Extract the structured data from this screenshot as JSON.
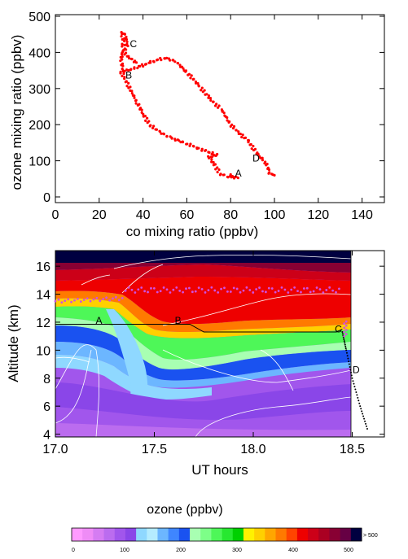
{
  "chart_data": [
    {
      "type": "scatter",
      "xlabel": "co mixing ratio (ppbv)",
      "ylabel": "ozone mixing ratio (ppbv)",
      "xlim": [
        0,
        150
      ],
      "ylim": [
        0,
        500
      ],
      "xticks": [
        "0",
        "20",
        "40",
        "60",
        "80",
        "100",
        "120",
        "140"
      ],
      "yticks": [
        "0",
        "100",
        "200",
        "300",
        "400",
        "500"
      ],
      "color": "#ff0000",
      "path_points": [
        [
          80,
          60
        ],
        [
          83,
          52
        ],
        [
          78,
          57
        ],
        [
          75,
          65
        ],
        [
          72,
          95
        ],
        [
          70,
          110
        ],
        [
          74,
          115
        ],
        [
          72,
          120
        ],
        [
          65,
          135
        ],
        [
          58,
          152
        ],
        [
          52,
          165
        ],
        [
          47,
          182
        ],
        [
          43,
          200
        ],
        [
          40,
          230
        ],
        [
          37,
          265
        ],
        [
          34,
          300
        ],
        [
          31,
          335
        ],
        [
          30,
          348
        ],
        [
          31,
          348
        ],
        [
          34,
          352
        ],
        [
          38,
          360
        ],
        [
          43,
          372
        ],
        [
          50,
          385
        ],
        [
          55,
          375
        ],
        [
          60,
          345
        ],
        [
          66,
          305
        ],
        [
          70,
          275
        ],
        [
          76,
          240
        ],
        [
          80,
          200
        ],
        [
          85,
          170
        ],
        [
          88,
          155
        ],
        [
          92,
          120
        ],
        [
          96,
          95
        ],
        [
          98,
          65
        ],
        [
          100,
          60
        ]
      ],
      "path_points_2": [
        [
          31,
          346
        ],
        [
          30,
          380
        ],
        [
          31,
          410
        ],
        [
          31,
          440
        ],
        [
          30,
          455
        ],
        [
          32,
          448
        ],
        [
          33,
          420
        ],
        [
          31,
          400
        ],
        [
          34,
          385
        ],
        [
          37,
          372
        ]
      ],
      "annotations": [
        {
          "label": "A",
          "x": 82,
          "y": 65
        },
        {
          "label": "B",
          "x": 32,
          "y": 337
        },
        {
          "label": "C",
          "x": 34,
          "y": 423
        },
        {
          "label": "D",
          "x": 90,
          "y": 107
        }
      ]
    },
    {
      "type": "heatmap",
      "xlabel": "UT hours",
      "ylabel": "Altitude (km)",
      "xlim": [
        17.0,
        18.66
      ],
      "ylim": [
        3.8,
        17.1
      ],
      "xticks": [
        "17.0",
        "17.5",
        "18.0",
        "18.5"
      ],
      "yticks": [
        "4",
        "6",
        "8",
        "10",
        "12",
        "14",
        "16"
      ],
      "colorbar_title": "ozone (ppbv)",
      "colorbar_labels": [
        "0",
        "100",
        "200",
        "300",
        "400",
        "500",
        "> 500"
      ],
      "colorbar_colors": [
        "#ff9bff",
        "#ef8cf6",
        "#d57cf2",
        "#bb6cef",
        "#a156ec",
        "#8a46e8",
        "#8fd8ff",
        "#b5ecff",
        "#6cb6ff",
        "#3f86ff",
        "#1a52f0",
        "#a8ffb2",
        "#7dff88",
        "#4ef758",
        "#27e830",
        "#00d000",
        "#fff200",
        "#ffd000",
        "#ffa600",
        "#ff7a00",
        "#ff4400",
        "#ee0000",
        "#cc0018",
        "#aa0022",
        "#880033",
        "#660044",
        "#000040"
      ],
      "flight_track": [
        [
          17.0,
          11.85
        ],
        [
          17.6,
          11.85
        ],
        [
          17.68,
          11.85
        ],
        [
          17.75,
          11.3
        ],
        [
          18.0,
          11.3
        ],
        [
          18.25,
          11.3
        ],
        [
          18.42,
          11.3
        ],
        [
          18.45,
          11.5
        ]
      ],
      "descent": [
        [
          18.45,
          11.3
        ],
        [
          18.47,
          10.0
        ],
        [
          18.5,
          8.0
        ],
        [
          18.54,
          6.0
        ],
        [
          18.58,
          4.2
        ]
      ],
      "annotations": [
        {
          "label": "A",
          "x": 17.22,
          "y": 12.1
        },
        {
          "label": "B",
          "x": 17.62,
          "y": 12.1
        },
        {
          "label": "C",
          "x": 18.43,
          "y": 11.5
        },
        {
          "label": "D",
          "x": 18.52,
          "y": 8.6
        }
      ]
    }
  ]
}
